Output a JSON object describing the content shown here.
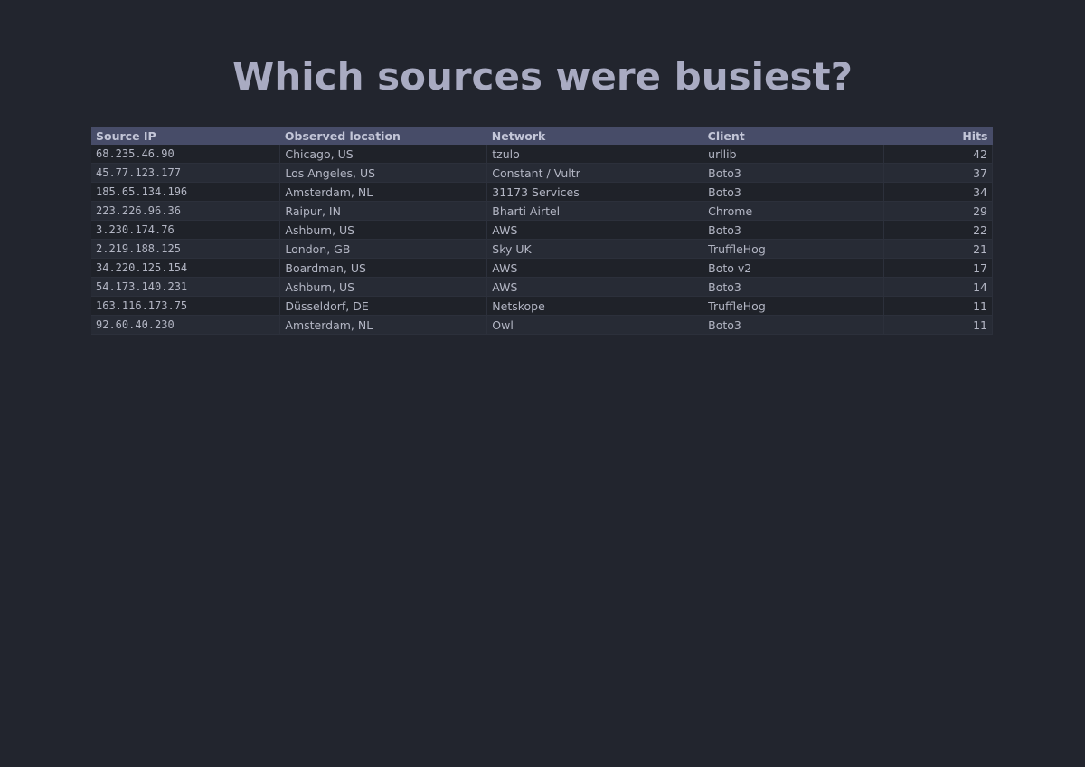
{
  "header": {
    "title": "Which sources were busiest?"
  },
  "table": {
    "columns": [
      "Source IP",
      "Observed location",
      "Network",
      "Client",
      "Hits"
    ],
    "rows": [
      [
        "68.235.46.90",
        "Chicago, US",
        "tzulo",
        "urllib",
        42
      ],
      [
        "45.77.123.177",
        "Los Angeles, US",
        "Constant / Vultr",
        "Boto3",
        37
      ],
      [
        "185.65.134.196",
        "Amsterdam, NL",
        "31173 Services",
        "Boto3",
        34
      ],
      [
        "223.226.96.36",
        "Raipur, IN",
        "Bharti Airtel",
        "Chrome",
        29
      ],
      [
        "3.230.174.76",
        "Ashburn, US",
        "AWS",
        "Boto3",
        22
      ],
      [
        "2.219.188.125",
        "London, GB",
        "Sky UK",
        "TruffleHog",
        21
      ],
      [
        "34.220.125.154",
        "Boardman, US",
        "AWS",
        "Boto v2",
        17
      ],
      [
        "54.173.140.231",
        "Ashburn, US",
        "AWS",
        "Boto3",
        14
      ],
      [
        "163.116.173.75",
        "Düsseldorf, DE",
        "Netskope",
        "TruffleHog",
        11
      ],
      [
        "92.60.40.230",
        "Amsterdam, NL",
        "Owl",
        "Boto3",
        11
      ]
    ]
  }
}
